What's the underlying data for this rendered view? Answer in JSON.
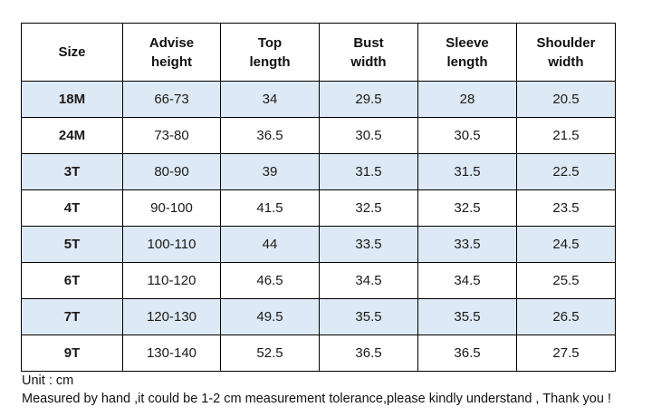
{
  "table": {
    "headers": [
      "Size",
      "Advise\nheight",
      "Top\nlength",
      "Bust\nwidth",
      "Sleeve\nlength",
      "Shoulder\nwidth"
    ],
    "rows": [
      [
        "18M",
        "66-73",
        "34",
        "29.5",
        "28",
        "20.5"
      ],
      [
        "24M",
        "73-80",
        "36.5",
        "30.5",
        "30.5",
        "21.5"
      ],
      [
        "3T",
        "80-90",
        "39",
        "31.5",
        "31.5",
        "22.5"
      ],
      [
        "4T",
        "90-100",
        "41.5",
        "32.5",
        "32.5",
        "23.5"
      ],
      [
        "5T",
        "100-110",
        "44",
        "33.5",
        "33.5",
        "24.5"
      ],
      [
        "6T",
        "110-120",
        "46.5",
        "34.5",
        "34.5",
        "25.5"
      ],
      [
        "7T",
        "120-130",
        "49.5",
        "35.5",
        "35.5",
        "26.5"
      ],
      [
        "9T",
        "130-140",
        "52.5",
        "36.5",
        "36.5",
        "27.5"
      ]
    ],
    "shaded_row_color": "#dde9f4",
    "border_color": "#000000"
  },
  "notes": {
    "unit": "Unit : cm",
    "measure": "Measured by hand ,it could be 1-2 cm measurement tolerance,please kindly understand , Thank you !"
  }
}
